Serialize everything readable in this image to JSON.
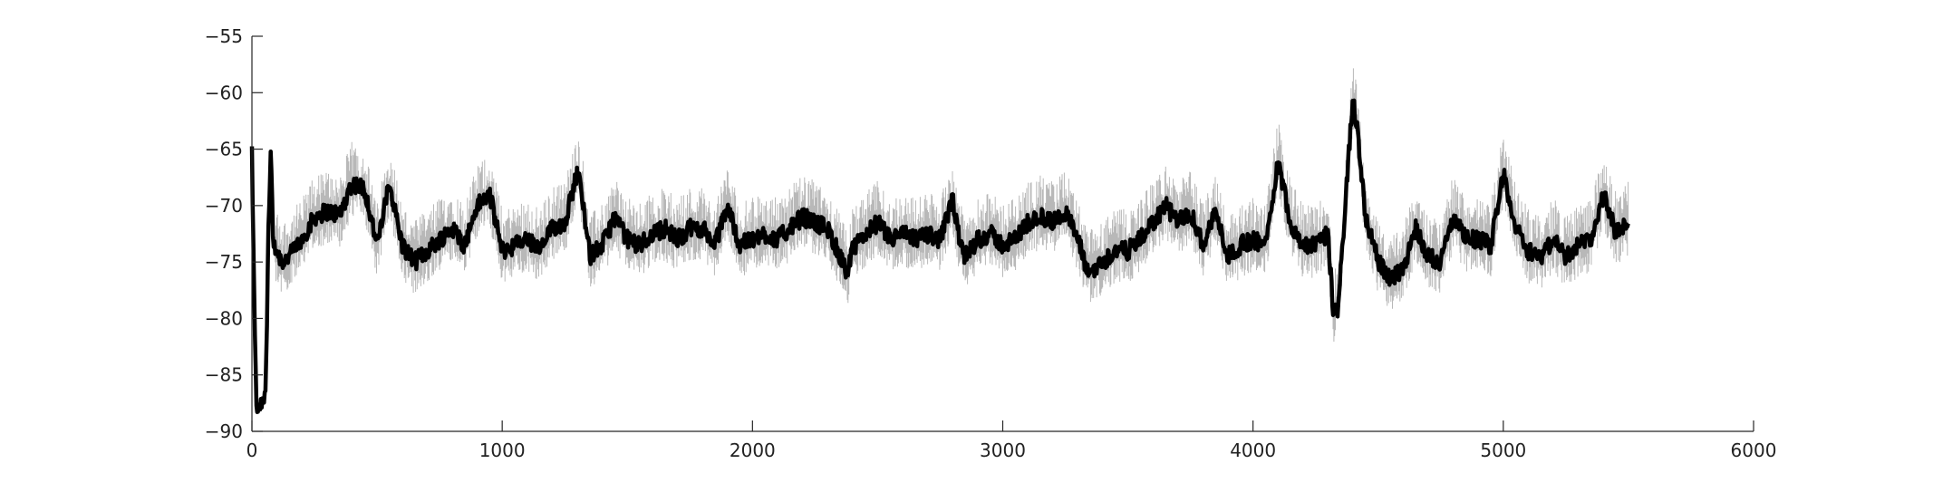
{
  "chart_data": {
    "type": "line",
    "title": "",
    "xlabel": "",
    "ylabel": "",
    "xlim": [
      0,
      6000
    ],
    "ylim": [
      -90,
      -55
    ],
    "xticks": [
      0,
      1000,
      2000,
      3000,
      4000,
      5000,
      6000
    ],
    "yticks": [
      -90,
      -85,
      -80,
      -75,
      -70,
      -65,
      -60,
      -55
    ],
    "xtick_labels": [
      "0",
      "1000",
      "2000",
      "3000",
      "4000",
      "5000",
      "6000"
    ],
    "ytick_labels": [
      "−90",
      "−85",
      "−80",
      "−75",
      "−70",
      "−65",
      "−60",
      "−55"
    ],
    "grid": false,
    "legend": "none",
    "colors": {
      "mean": "#000000",
      "spread": "#b8b8b8",
      "axis": "#262626"
    },
    "series": [
      {
        "role": "smoothed",
        "x": [
          0,
          10,
          20,
          30,
          45,
          55,
          65,
          75,
          85,
          100,
          120,
          150,
          200,
          250,
          300,
          350,
          400,
          450,
          500,
          550,
          600,
          650,
          700,
          750,
          800,
          850,
          900,
          950,
          1000,
          1050,
          1100,
          1150,
          1200,
          1250,
          1300,
          1320,
          1350,
          1400,
          1450,
          1500,
          1550,
          1600,
          1650,
          1700,
          1750,
          1800,
          1850,
          1900,
          1950,
          2000,
          2050,
          2100,
          2150,
          2200,
          2250,
          2300,
          2350,
          2380,
          2400,
          2450,
          2500,
          2550,
          2600,
          2650,
          2700,
          2750,
          2800,
          2830,
          2850,
          2900,
          2950,
          3000,
          3050,
          3100,
          3150,
          3200,
          3250,
          3300,
          3340,
          3400,
          3450,
          3500,
          3550,
          3600,
          3650,
          3700,
          3750,
          3800,
          3850,
          3900,
          3950,
          4000,
          4050,
          4100,
          4150,
          4200,
          4250,
          4300,
          4320,
          4340,
          4360,
          4380,
          4400,
          4420,
          4450,
          4500,
          4550,
          4600,
          4650,
          4700,
          4750,
          4800,
          4850,
          4900,
          4950,
          5000,
          5050,
          5100,
          5150,
          5200,
          5250,
          5300,
          5350,
          5400,
          5450,
          5500
        ],
        "y": [
          -65,
          -80,
          -89,
          -88,
          -87,
          -87,
          -73,
          -65,
          -73.5,
          -74,
          -75,
          -74.5,
          -73,
          -71,
          -70.5,
          -70.8,
          -68,
          -68.5,
          -73.5,
          -68,
          -73.5,
          -75,
          -74,
          -73,
          -72,
          -73.5,
          -70,
          -69,
          -74,
          -73.5,
          -73,
          -74,
          -72,
          -71.5,
          -67,
          -69,
          -74.5,
          -73.5,
          -71,
          -73,
          -73.5,
          -72.5,
          -72,
          -73,
          -72,
          -72,
          -73.5,
          -70,
          -73.5,
          -73,
          -72.5,
          -73,
          -72,
          -71,
          -71.5,
          -72,
          -74.5,
          -76,
          -74,
          -72.5,
          -71.5,
          -73,
          -72.5,
          -73,
          -72.5,
          -73,
          -69.5,
          -73.5,
          -74.5,
          -73,
          -72.5,
          -73.5,
          -73,
          -71.5,
          -71,
          -71.5,
          -70.5,
          -73,
          -76,
          -75,
          -74,
          -74,
          -73,
          -71.5,
          -70,
          -71.5,
          -70.5,
          -73.5,
          -70.5,
          -74.5,
          -73.5,
          -73,
          -73.5,
          -66,
          -71.5,
          -73.5,
          -73.5,
          -72.5,
          -79.5,
          -79,
          -73,
          -66,
          -60.5,
          -64,
          -71,
          -75,
          -76.5,
          -75.5,
          -72,
          -74.5,
          -75,
          -71,
          -73,
          -73,
          -73.5,
          -67,
          -72,
          -74,
          -74.5,
          -73,
          -74.5,
          -73.5,
          -73,
          -69,
          -72.5,
          -71.5
        ]
      }
    ]
  }
}
